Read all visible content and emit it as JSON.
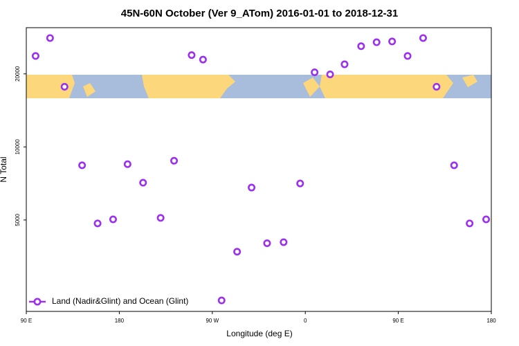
{
  "chart_data": {
    "type": "scatter",
    "title": "45N-60N October (Ver 9_ATom)   2016-01-01 to 2018-12-31",
    "xlabel": "Longitude (deg E)",
    "ylabel": "N Total",
    "x": [
      99,
      113,
      127,
      144,
      159,
      174,
      188,
      203,
      220,
      233,
      250,
      261,
      279,
      294,
      308,
      323,
      339,
      355,
      369,
      384,
      398,
      414,
      429,
      444,
      459,
      474,
      487,
      504,
      519,
      535
    ],
    "series": [
      {
        "name": "Land (Nadir&Glint) and Ocean (Glint)",
        "color": "#9b30f0",
        "values": [
          23700,
          28100,
          17700,
          8400,
          4840,
          5030,
          8490,
          7120,
          5100,
          8770,
          23900,
          22900,
          2330,
          3700,
          6800,
          4010,
          4050,
          7070,
          20300,
          19900,
          21900,
          26000,
          27000,
          27200,
          23700,
          28100,
          17700,
          8400,
          4840,
          5030
        ]
      }
    ],
    "xlim": [
      90,
      540
    ],
    "xticks": [
      {
        "value": 90,
        "label": "90 E"
      },
      180,
      {
        "value": 270,
        "label": "90 W"
      },
      {
        "value": 360,
        "label": "0"
      },
      {
        "value": 450,
        "label": "90 E"
      },
      {
        "value": 540,
        "label": "180"
      }
    ],
    "ylim": [
      2100,
      31000
    ],
    "yticks": [
      5000,
      10000,
      20000
    ],
    "ylog": true,
    "legend": "bottom-left"
  }
}
